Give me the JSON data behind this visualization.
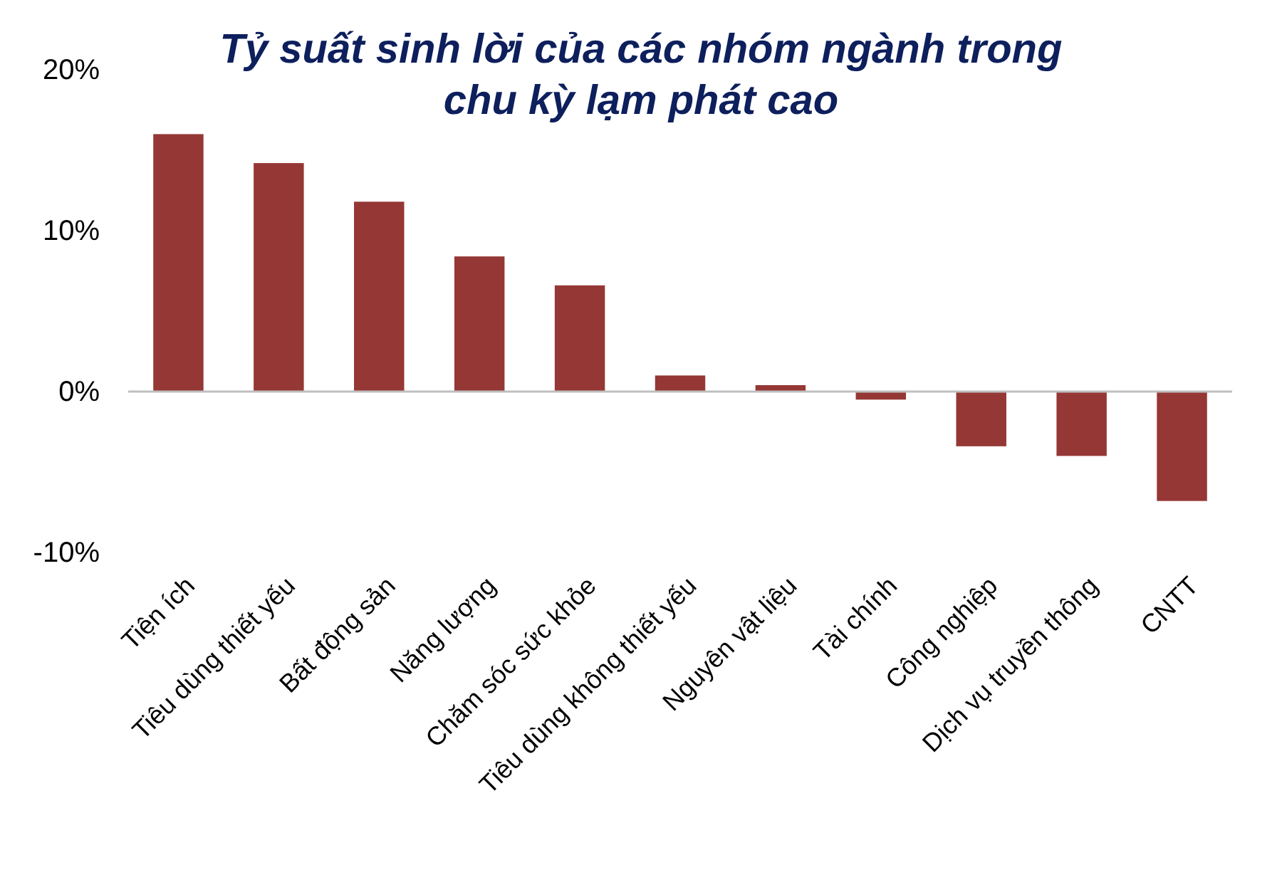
{
  "chart_data": {
    "type": "bar",
    "title": "Tỷ suất sinh lời của các nhóm ngành trong chu kỳ lạm phát cao",
    "categories": [
      "Tiện ích",
      "Tiêu dùng thiết yếu",
      "Bất động sản",
      "Năng lượng",
      "Chăm sóc sức khỏe",
      "Tiêu dùng không thiết yếu",
      "Nguyên vật liệu",
      "Tài chính",
      "Công nghiệp",
      "Dịch vụ truyền thông",
      "CNTT"
    ],
    "values": [
      16.0,
      14.2,
      11.8,
      8.4,
      6.6,
      1.0,
      0.4,
      -0.5,
      -3.4,
      -4.0,
      -6.8
    ],
    "color": "#953735",
    "ylim": [
      -10,
      20
    ],
    "yticks": [
      {
        "value": -10,
        "label": "-10%"
      },
      {
        "value": 0,
        "label": "0%"
      },
      {
        "value": 10,
        "label": "10%"
      },
      {
        "value": 20,
        "label": "20%"
      }
    ]
  }
}
